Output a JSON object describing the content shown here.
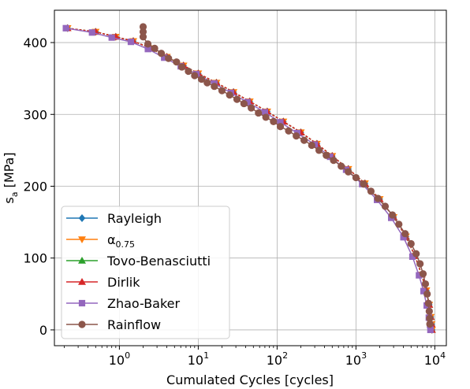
{
  "chart_data": {
    "type": "line",
    "xlabel": "Cumulated Cycles [cycles]",
    "ylabel": "s_a [MPa]",
    "ylabel_main": "s",
    "ylabel_sub": "a",
    "ylabel_rest": " [MPa]",
    "xscale": "log",
    "xlim": [
      0.15,
      14000
    ],
    "ylim": [
      -22,
      445
    ],
    "x_ticks": [
      {
        "value": 1,
        "base": "10",
        "exp": "0"
      },
      {
        "value": 10,
        "base": "10",
        "exp": "1"
      },
      {
        "value": 100,
        "base": "10",
        "exp": "2"
      },
      {
        "value": 1000,
        "base": "10",
        "exp": "3"
      },
      {
        "value": 10000,
        "base": "10",
        "exp": "4"
      }
    ],
    "y_ticks": [
      0,
      100,
      200,
      300,
      400
    ],
    "grid": true,
    "legend_position": "lower-left",
    "series": [
      {
        "name": "Rayleigh",
        "label_main": "Rayleigh",
        "label_sub": "",
        "color": "#1f77b4",
        "marker": "diamond",
        "x": [
          0.22,
          0.5,
          0.9,
          1.5,
          2.5,
          4,
          6.5,
          10,
          17,
          28,
          45,
          75,
          120,
          200,
          320,
          500,
          800,
          1300,
          2000,
          3000,
          4300,
          5600,
          6800,
          7800,
          8500,
          8900,
          9100,
          9200
        ],
        "y": [
          420,
          415,
          408,
          402,
          392,
          380,
          368,
          357,
          344,
          331,
          318,
          304,
          290,
          275,
          259,
          242,
          224,
          204,
          182,
          157,
          130,
          103,
          77,
          55,
          35,
          18,
          8,
          0
        ]
      },
      {
        "name": "α_0.75",
        "label_main": "α",
        "label_sub": "0.75",
        "color": "#ff7f0e",
        "marker": "triangle-down",
        "x": [
          0.22,
          0.5,
          0.9,
          1.5,
          2.5,
          4,
          6.5,
          10,
          17,
          28,
          45,
          75,
          120,
          200,
          320,
          500,
          800,
          1300,
          2000,
          3000,
          4300,
          5600,
          6800,
          7800,
          8500,
          8900,
          9100,
          9200
        ],
        "y": [
          420,
          415,
          408,
          402,
          392,
          380,
          368,
          357,
          344,
          331,
          318,
          304,
          290,
          275,
          259,
          242,
          224,
          204,
          182,
          157,
          130,
          103,
          77,
          55,
          35,
          18,
          8,
          0
        ]
      },
      {
        "name": "Tovo-Benasciutti",
        "label_main": "Tovo-Benasciutti",
        "label_sub": "",
        "color": "#2ca02c",
        "marker": "triangle-up",
        "x": [
          0.22,
          0.5,
          0.9,
          1.5,
          2.5,
          4,
          6.5,
          10,
          17,
          28,
          45,
          75,
          120,
          200,
          320,
          500,
          800,
          1300,
          2000,
          3000,
          4300,
          5600,
          6800,
          7800,
          8500,
          8900,
          9100,
          9200
        ],
        "y": [
          420,
          415,
          408,
          402,
          392,
          380,
          368,
          357,
          344,
          331,
          318,
          304,
          290,
          275,
          259,
          242,
          224,
          204,
          182,
          157,
          130,
          103,
          77,
          55,
          35,
          18,
          8,
          0
        ]
      },
      {
        "name": "Dirlik",
        "label_main": "Dirlik",
        "label_sub": "",
        "color": "#d62728",
        "marker": "triangle-up",
        "x": [
          0.22,
          0.5,
          0.9,
          1.5,
          2.5,
          4,
          6.5,
          10,
          17,
          28,
          45,
          75,
          120,
          200,
          320,
          500,
          800,
          1300,
          2000,
          3000,
          4300,
          5600,
          6800,
          7800,
          8500,
          8900,
          9100,
          9200
        ],
        "y": [
          420,
          415,
          408,
          402,
          392,
          380,
          368,
          357,
          344,
          331,
          318,
          304,
          290,
          275,
          259,
          242,
          224,
          204,
          182,
          157,
          130,
          103,
          77,
          55,
          35,
          18,
          8,
          0
        ]
      },
      {
        "name": "Zhao-Baker",
        "label_main": "Zhao-Baker",
        "label_sub": "",
        "color": "#9467bd",
        "marker": "square",
        "x": [
          0.21,
          0.45,
          0.8,
          1.4,
          2.3,
          3.7,
          6,
          9.5,
          16,
          26,
          42,
          70,
          110,
          180,
          300,
          470,
          750,
          1200,
          1850,
          2800,
          4000,
          5200,
          6300,
          7200,
          7900,
          8400,
          8700,
          8800
        ],
        "y": [
          420,
          414,
          407,
          401,
          391,
          379,
          367,
          356,
          343,
          330,
          317,
          303,
          289,
          274,
          258,
          241,
          223,
          203,
          181,
          156,
          129,
          102,
          76,
          54,
          34,
          17,
          7,
          0
        ]
      },
      {
        "name": "Rainflow",
        "label_main": "Rainflow",
        "label_sub": "",
        "color": "#8c564b",
        "marker": "circle",
        "x": [
          2,
          2,
          2,
          2.3,
          2.8,
          3.4,
          4.2,
          5.3,
          6.2,
          7.5,
          9,
          11,
          13,
          16,
          20,
          25,
          31,
          38,
          47,
          58,
          72,
          90,
          110,
          140,
          175,
          220,
          275,
          340,
          420,
          520,
          650,
          800,
          1000,
          1250,
          1550,
          1900,
          2350,
          2900,
          3500,
          4200,
          5000,
          5800,
          6500,
          7100,
          7600,
          8000,
          8300,
          8500,
          8600,
          8650
        ],
        "y": [
          422,
          415,
          408,
          398,
          392,
          385,
          378,
          373,
          366,
          360,
          354,
          349,
          344,
          339,
          333,
          327,
          321,
          315,
          309,
          302,
          296,
          290,
          283,
          277,
          270,
          264,
          257,
          250,
          243,
          236,
          228,
          220,
          212,
          203,
          193,
          183,
          172,
          160,
          147,
          134,
          120,
          106,
          92,
          78,
          64,
          50,
          37,
          26,
          16,
          8
        ]
      }
    ]
  }
}
